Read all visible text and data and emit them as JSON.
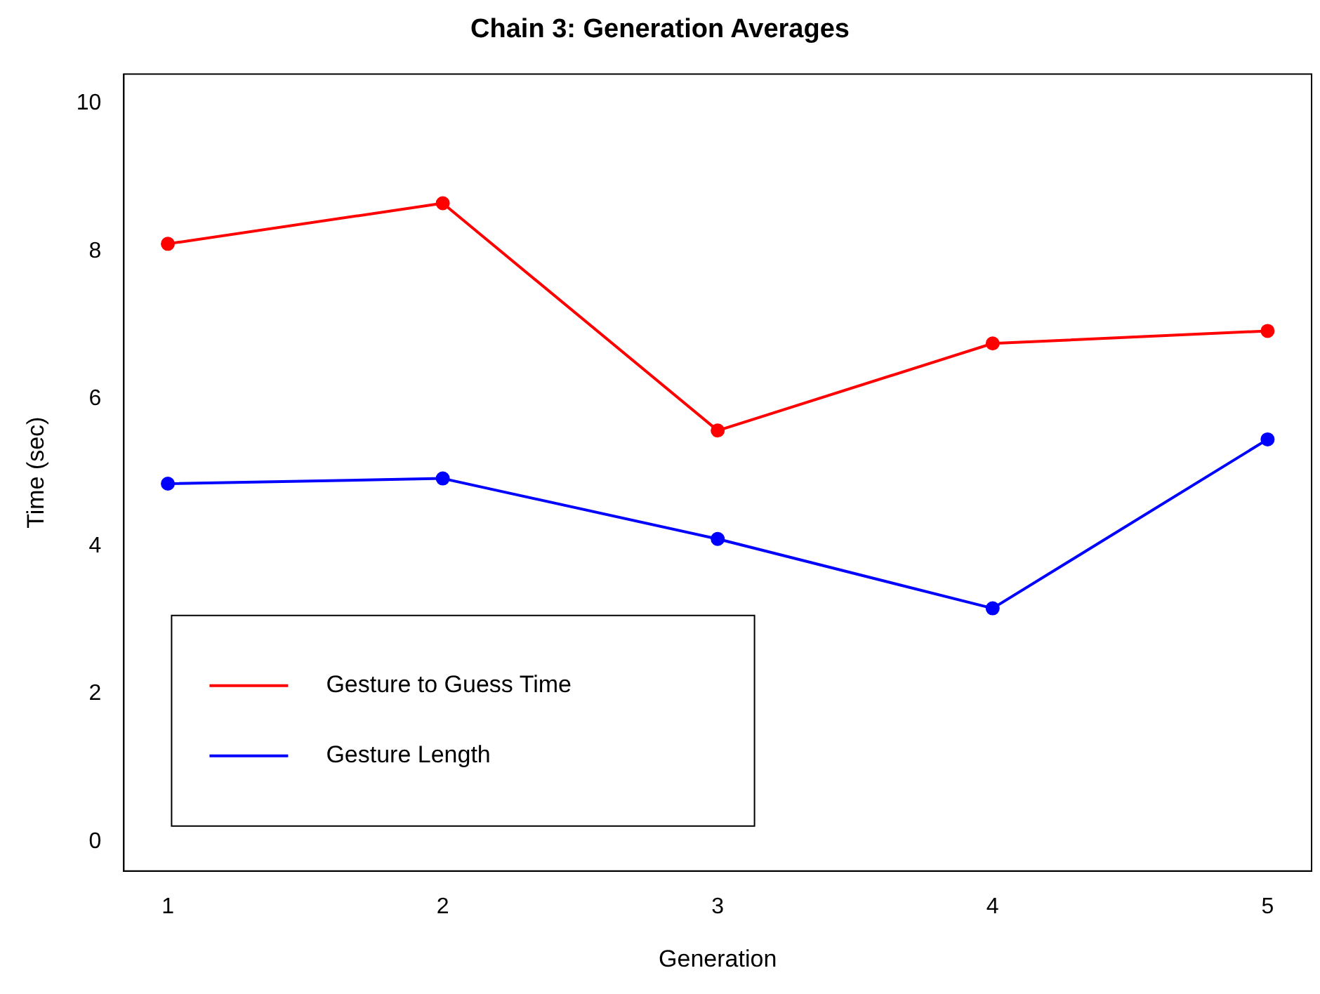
{
  "chart_data": {
    "type": "line",
    "title": "Chain 3: Generation Averages",
    "xlabel": "Generation",
    "ylabel": "Time (sec)",
    "x": [
      1,
      2,
      3,
      4,
      5
    ],
    "xlim": [
      0.84,
      5.16
    ],
    "xticks": [
      1,
      2,
      3,
      4,
      5
    ],
    "ylim": [
      -0.4,
      10.4
    ],
    "yticks": [
      0,
      2,
      4,
      6,
      8,
      10
    ],
    "grid": false,
    "legend": "bottom left",
    "marker": "circle",
    "line_style": "solid",
    "series": [
      {
        "name": "Gesture to Guess Time",
        "color": "#ff0000",
        "values": [
          8.1,
          8.65,
          5.57,
          6.75,
          6.92
        ]
      },
      {
        "name": "Gesture Length",
        "color": "#0000ff",
        "values": [
          4.85,
          4.92,
          4.1,
          3.16,
          5.45
        ]
      }
    ]
  }
}
